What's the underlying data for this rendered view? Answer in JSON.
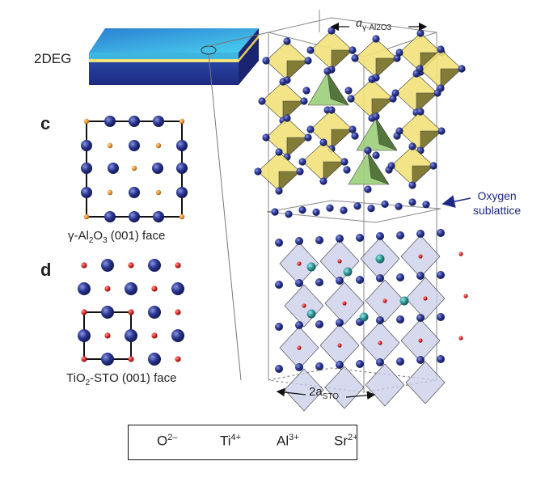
{
  "labels": {
    "twodeg": "2DEG",
    "panel_c": "c",
    "panel_d": "d",
    "face_c_pre": "γ-Al",
    "face_c_sub1": "2",
    "face_c_mid": "O",
    "face_c_sub2": "3",
    "face_c_post": " (001) face",
    "face_d_pre": "TiO",
    "face_d_sub": "2",
    "face_d_post": "-STO (001) face",
    "top_dim_main": "a",
    "top_dim_sub": "γ-Al2O3",
    "bottom_dim_main": "2a",
    "bottom_dim_sub": "STO",
    "oxygen_line1": "Oxygen",
    "oxygen_line2": "sublattice"
  },
  "legend": [
    {
      "ion": "O",
      "charge": "2–",
      "color": "#2a3591",
      "shape": "large-sphere"
    },
    {
      "ion": "Ti",
      "charge": "4+",
      "color": "#d42525",
      "shape": "small-sphere"
    },
    {
      "ion": "Al",
      "charge": "3+",
      "color": "#f09020",
      "shape": "small-sphere"
    },
    {
      "ion": "Sr",
      "charge": "2+",
      "color": "#2f9a9a",
      "shape": "medium-sphere"
    }
  ],
  "colors": {
    "oxygen": "#2a3591",
    "titanium": "#d42525",
    "aluminum": "#f09020",
    "strontium": "#2f9a9a",
    "al_octahedra": "#f2e27a",
    "al_tetrahedra": "#9ccf7a",
    "sto_octahedra": "#c9cde8",
    "slab_top": "#3fb6e0",
    "slab_side": "#2b3c9a",
    "interface": "#f4e27a",
    "arrow": "#1c2a86"
  }
}
